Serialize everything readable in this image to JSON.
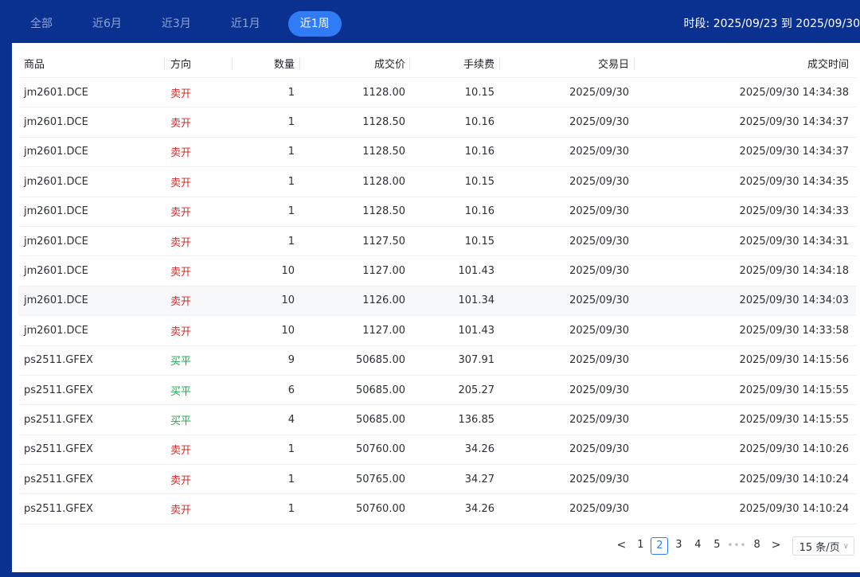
{
  "tabs": [
    {
      "label": "全部",
      "active": false
    },
    {
      "label": "近6月",
      "active": false
    },
    {
      "label": "近3月",
      "active": false
    },
    {
      "label": "近1月",
      "active": false
    },
    {
      "label": "近1周",
      "active": true
    }
  ],
  "period_text": "时段: 2025/09/23 到 2025/09/30",
  "colors": {
    "accent": "#2f7cf6",
    "sell": "#d42a2a",
    "buy": "#19a84a",
    "header_bg": "#0a3190"
  },
  "columns": [
    "商品",
    "方向",
    "数量",
    "成交价",
    "手续费",
    "交易日",
    "成交时间"
  ],
  "rows": [
    {
      "item": "jm2601.DCE",
      "dir": "卖开",
      "side": "sell",
      "qty": "1",
      "price": "1128.00",
      "fee": "10.15",
      "date": "2025/09/30",
      "time": "2025/09/30 14:34:38"
    },
    {
      "item": "jm2601.DCE",
      "dir": "卖开",
      "side": "sell",
      "qty": "1",
      "price": "1128.50",
      "fee": "10.16",
      "date": "2025/09/30",
      "time": "2025/09/30 14:34:37"
    },
    {
      "item": "jm2601.DCE",
      "dir": "卖开",
      "side": "sell",
      "qty": "1",
      "price": "1128.50",
      "fee": "10.16",
      "date": "2025/09/30",
      "time": "2025/09/30 14:34:37"
    },
    {
      "item": "jm2601.DCE",
      "dir": "卖开",
      "side": "sell",
      "qty": "1",
      "price": "1128.00",
      "fee": "10.15",
      "date": "2025/09/30",
      "time": "2025/09/30 14:34:35"
    },
    {
      "item": "jm2601.DCE",
      "dir": "卖开",
      "side": "sell",
      "qty": "1",
      "price": "1128.50",
      "fee": "10.16",
      "date": "2025/09/30",
      "time": "2025/09/30 14:34:33"
    },
    {
      "item": "jm2601.DCE",
      "dir": "卖开",
      "side": "sell",
      "qty": "1",
      "price": "1127.50",
      "fee": "10.15",
      "date": "2025/09/30",
      "time": "2025/09/30 14:34:31"
    },
    {
      "item": "jm2601.DCE",
      "dir": "卖开",
      "side": "sell",
      "qty": "10",
      "price": "1127.00",
      "fee": "101.43",
      "date": "2025/09/30",
      "time": "2025/09/30 14:34:18"
    },
    {
      "item": "jm2601.DCE",
      "dir": "卖开",
      "side": "sell",
      "qty": "10",
      "price": "1126.00",
      "fee": "101.34",
      "date": "2025/09/30",
      "time": "2025/09/30 14:34:03",
      "highlight": true
    },
    {
      "item": "jm2601.DCE",
      "dir": "卖开",
      "side": "sell",
      "qty": "10",
      "price": "1127.00",
      "fee": "101.43",
      "date": "2025/09/30",
      "time": "2025/09/30 14:33:58"
    },
    {
      "item": "ps2511.GFEX",
      "dir": "买平",
      "side": "buy",
      "qty": "9",
      "price": "50685.00",
      "fee": "307.91",
      "date": "2025/09/30",
      "time": "2025/09/30 14:15:56"
    },
    {
      "item": "ps2511.GFEX",
      "dir": "买平",
      "side": "buy",
      "qty": "6",
      "price": "50685.00",
      "fee": "205.27",
      "date": "2025/09/30",
      "time": "2025/09/30 14:15:55"
    },
    {
      "item": "ps2511.GFEX",
      "dir": "买平",
      "side": "buy",
      "qty": "4",
      "price": "50685.00",
      "fee": "136.85",
      "date": "2025/09/30",
      "time": "2025/09/30 14:15:55"
    },
    {
      "item": "ps2511.GFEX",
      "dir": "卖开",
      "side": "sell",
      "qty": "1",
      "price": "50760.00",
      "fee": "34.26",
      "date": "2025/09/30",
      "time": "2025/09/30 14:10:26"
    },
    {
      "item": "ps2511.GFEX",
      "dir": "卖开",
      "side": "sell",
      "qty": "1",
      "price": "50765.00",
      "fee": "34.27",
      "date": "2025/09/30",
      "time": "2025/09/30 14:10:24"
    },
    {
      "item": "ps2511.GFEX",
      "dir": "卖开",
      "side": "sell",
      "qty": "1",
      "price": "50760.00",
      "fee": "34.26",
      "date": "2025/09/30",
      "time": "2025/09/30 14:10:24"
    }
  ],
  "pagination": {
    "prev": "<",
    "pages": [
      "1",
      "2",
      "3",
      "4",
      "5"
    ],
    "current": "2",
    "ellipsis": "•••",
    "last": "8",
    "next": ">",
    "page_size": "15 条/页"
  }
}
